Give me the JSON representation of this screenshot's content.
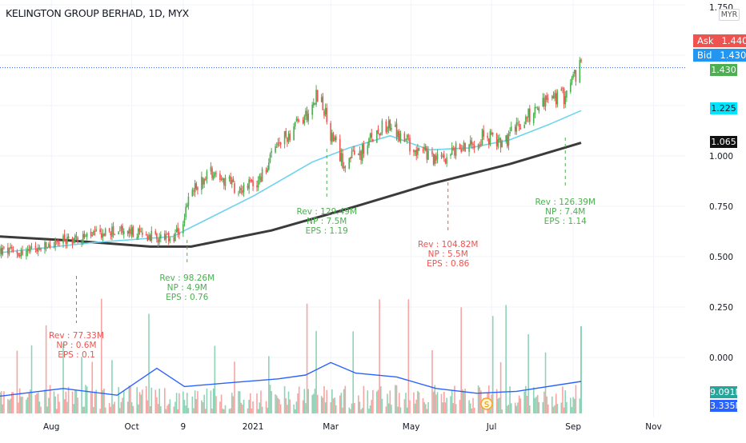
{
  "header": {
    "title": "KELINGTON GROUP BERHAD, 1D, MYX",
    "currency": "MYR"
  },
  "quote": {
    "ask_label": "Ask",
    "ask_value": "1.440",
    "bid_label": "Bid",
    "bid_value": "1.430",
    "last_price": "1.430",
    "ma_fast_value": "1.225",
    "ma_slow_value": "1.065",
    "volume_value": "9.091M",
    "volume_ma_value": "3.335M",
    "top_partial_tick": "1.750"
  },
  "colors": {
    "up": "#26a69a",
    "up_bar": "#4caf50",
    "down": "#ef5350",
    "ma_fast": "#6ed3f0",
    "ma_slow": "#3b3b3b",
    "volume_ma": "#2962ff",
    "ask_bg": "#ef5350",
    "bid_bg": "#2196f3",
    "last_bg": "#4caf50",
    "ma_fast_bg": "#00e5ff",
    "ma_slow_bg": "#111111",
    "volume_bg": "#26a69a",
    "volume_ma_bg": "#2962ff",
    "annot_green": "#4caf50",
    "annot_red": "#ef5350"
  },
  "chart_data": {
    "type": "candlestick",
    "title": "KELINGTON GROUP BERHAD, 1D, MYX",
    "y_axis": {
      "ticks": [
        "1.000",
        "0.750",
        "0.500",
        "0.250",
        "0.000"
      ],
      "ylim": [
        -0.35,
        1.78
      ],
      "unit": "MYR"
    },
    "x_axis": {
      "ticks": [
        "Aug",
        "Oct",
        "9",
        "2021",
        "Mar",
        "May",
        "Jul",
        "Sep",
        "Nov"
      ]
    },
    "price_anchors": [
      {
        "date": "2020-06-23",
        "close": 0.53
      },
      {
        "date": "2020-07-10",
        "close": 0.52
      },
      {
        "date": "2020-07-24",
        "close": 0.54
      },
      {
        "date": "2020-08-10",
        "close": 0.58
      },
      {
        "date": "2020-08-28",
        "close": 0.6
      },
      {
        "date": "2020-09-20",
        "close": 0.63
      },
      {
        "date": "2020-10-10",
        "close": 0.61
      },
      {
        "date": "2020-11-01",
        "close": 0.58
      },
      {
        "date": "2020-11-08",
        "close": 0.65
      },
      {
        "date": "2020-11-15",
        "close": 0.82
      },
      {
        "date": "2020-11-30",
        "close": 0.93
      },
      {
        "date": "2020-12-20",
        "close": 0.84
      },
      {
        "date": "2021-01-05",
        "close": 0.87
      },
      {
        "date": "2021-01-20",
        "close": 1.05
      },
      {
        "date": "2021-02-10",
        "close": 1.2
      },
      {
        "date": "2021-02-20",
        "close": 1.32
      },
      {
        "date": "2021-03-01",
        "close": 1.1
      },
      {
        "date": "2021-03-10",
        "close": 0.97
      },
      {
        "date": "2021-03-25",
        "close": 1.02
      },
      {
        "date": "2021-04-10",
        "close": 1.17
      },
      {
        "date": "2021-05-01",
        "close": 1.05
      },
      {
        "date": "2021-05-20",
        "close": 0.98
      },
      {
        "date": "2021-06-10",
        "close": 1.05
      },
      {
        "date": "2021-06-25",
        "close": 1.1
      },
      {
        "date": "2021-07-10",
        "close": 1.06
      },
      {
        "date": "2021-07-25",
        "close": 1.18
      },
      {
        "date": "2021-08-10",
        "close": 1.27
      },
      {
        "date": "2021-08-25",
        "close": 1.3
      },
      {
        "date": "2021-09-05",
        "close": 1.43
      }
    ],
    "ma_fast": [
      {
        "date": "2020-06-23",
        "value": 0.52
      },
      {
        "date": "2020-09-01",
        "value": 0.57
      },
      {
        "date": "2020-11-01",
        "value": 0.6
      },
      {
        "date": "2021-01-01",
        "value": 0.8
      },
      {
        "date": "2021-02-15",
        "value": 0.97
      },
      {
        "date": "2021-03-15",
        "value": 1.04
      },
      {
        "date": "2021-04-15",
        "value": 1.1
      },
      {
        "date": "2021-05-15",
        "value": 1.03
      },
      {
        "date": "2021-06-15",
        "value": 1.04
      },
      {
        "date": "2021-07-15",
        "value": 1.08
      },
      {
        "date": "2021-08-15",
        "value": 1.16
      },
      {
        "date": "2021-09-07",
        "value": 1.225
      }
    ],
    "ma_slow": [
      {
        "date": "2020-06-23",
        "value": 0.6
      },
      {
        "date": "2020-08-15",
        "value": 0.58
      },
      {
        "date": "2020-10-15",
        "value": 0.55
      },
      {
        "date": "2020-11-15",
        "value": 0.55
      },
      {
        "date": "2021-01-15",
        "value": 0.63
      },
      {
        "date": "2021-03-15",
        "value": 0.74
      },
      {
        "date": "2021-05-15",
        "value": 0.86
      },
      {
        "date": "2021-07-15",
        "value": 0.96
      },
      {
        "date": "2021-09-07",
        "value": 1.065
      }
    ],
    "volume_ma": [
      {
        "date": "2020-06-23",
        "value": 1.8
      },
      {
        "date": "2020-08-10",
        "value": 2.6
      },
      {
        "date": "2020-09-20",
        "value": 1.9
      },
      {
        "date": "2020-10-20",
        "value": 4.7
      },
      {
        "date": "2020-11-10",
        "value": 2.8
      },
      {
        "date": "2020-12-15",
        "value": 3.2
      },
      {
        "date": "2021-01-20",
        "value": 3.6
      },
      {
        "date": "2021-02-10",
        "value": 4.0
      },
      {
        "date": "2021-03-01",
        "value": 5.3
      },
      {
        "date": "2021-03-20",
        "value": 4.2
      },
      {
        "date": "2021-04-20",
        "value": 3.8
      },
      {
        "date": "2021-05-20",
        "value": 2.6
      },
      {
        "date": "2021-06-20",
        "value": 2.1
      },
      {
        "date": "2021-07-20",
        "value": 2.3
      },
      {
        "date": "2021-09-07",
        "value": 3.335
      }
    ],
    "volume_last": 9.091,
    "annotations": [
      {
        "date": "2020-08-20",
        "color": "red",
        "rev": "Rev : 77.33M",
        "np": "NP  : 0.6M",
        "eps": "EPS : 0.1"
      },
      {
        "date": "2020-11-12",
        "color": "green",
        "rev": "Rev : 98.26M",
        "np": "NP  : 4.9M",
        "eps": "EPS : 0.76"
      },
      {
        "date": "2021-02-26",
        "color": "green",
        "rev": "Rev : 129.49M",
        "np": "NP  : 7.5M",
        "eps": "EPS : 1.19"
      },
      {
        "date": "2021-05-29",
        "color": "red",
        "rev": "Rev : 104.82M",
        "np": "NP  : 5.5M",
        "eps": "EPS : 0.86"
      },
      {
        "date": "2021-08-26",
        "color": "green",
        "rev": "Rev : 126.39M",
        "np": "NP  : 7.4M",
        "eps": "EPS : 1.14"
      }
    ]
  }
}
